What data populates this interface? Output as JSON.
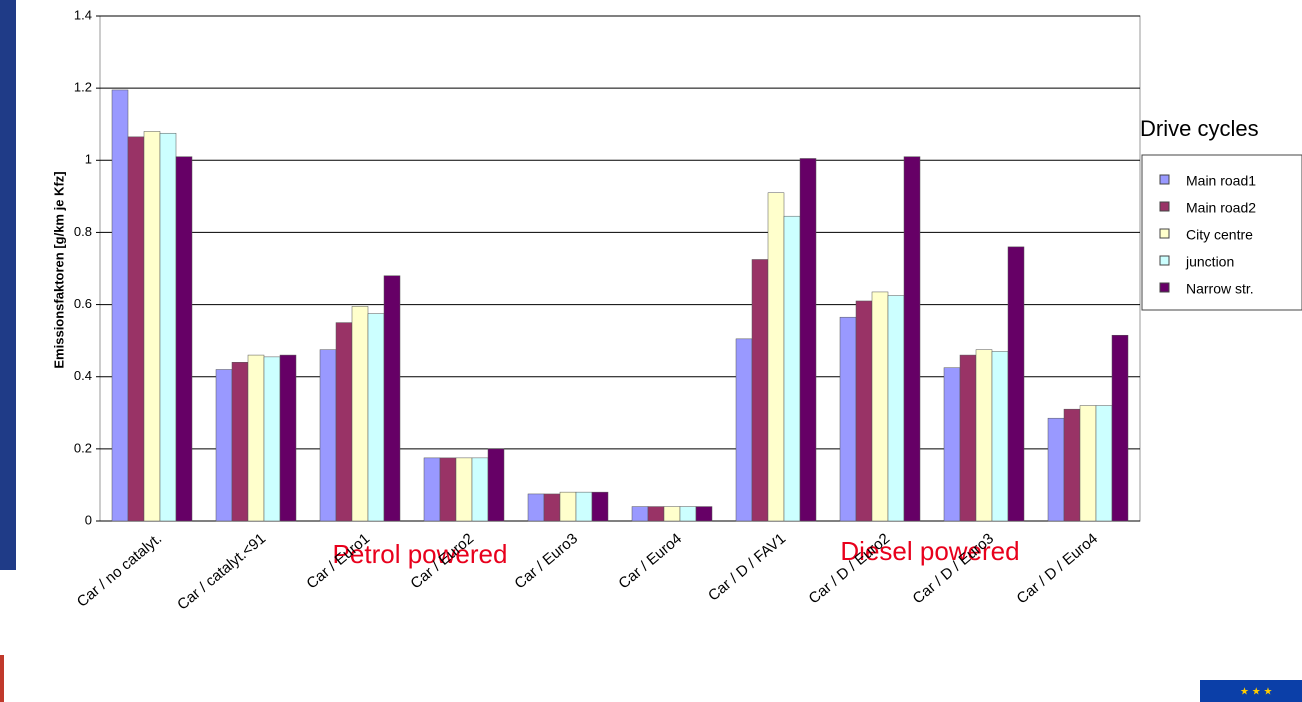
{
  "chart_data": {
    "type": "bar",
    "y_label": "Emissionsfaktoren [g/km je Kfz]",
    "legend_title": "Drive cycles",
    "annotations": [
      "Petrol powered",
      "Diesel powered"
    ],
    "categories": [
      "Car / no catalyt.",
      "Car / catalyt.<91",
      "Car / Euro1",
      "Car / Euro2",
      "Car / Euro3",
      "Car / Euro4",
      "Car / D / FAV1",
      "Car / D / Euro2",
      "Car / D / Euro3",
      "Car / D / Euro4"
    ],
    "series": [
      {
        "name": "Main road1",
        "color": "#9999ff",
        "values": [
          1.195,
          0.42,
          0.475,
          0.175,
          0.075,
          0.04,
          0.505,
          0.565,
          0.425,
          0.285
        ]
      },
      {
        "name": "Main road2",
        "color": "#993366",
        "values": [
          1.065,
          0.44,
          0.55,
          0.175,
          0.075,
          0.04,
          0.725,
          0.61,
          0.46,
          0.31
        ]
      },
      {
        "name": "City centre",
        "color": "#ffffcc",
        "values": [
          1.08,
          0.46,
          0.595,
          0.175,
          0.08,
          0.04,
          0.91,
          0.635,
          0.475,
          0.32
        ]
      },
      {
        "name": "junction",
        "color": "#ccffff",
        "values": [
          1.075,
          0.455,
          0.575,
          0.175,
          0.08,
          0.04,
          0.845,
          0.625,
          0.47,
          0.32
        ]
      },
      {
        "name": "Narrow str.",
        "color": "#660066",
        "values": [
          1.01,
          0.46,
          0.68,
          0.2,
          0.08,
          0.04,
          1.005,
          1.01,
          0.76,
          0.515
        ]
      }
    ],
    "ylim": [
      0,
      1.4
    ],
    "yticks": [
      0,
      0.2,
      0.4,
      0.6,
      0.8,
      1,
      1.2,
      1.4
    ],
    "grid": true,
    "legend": "right"
  }
}
